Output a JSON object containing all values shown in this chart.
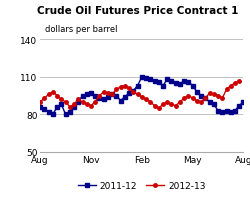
{
  "title": "Crude Oil Futures Price Contract 1",
  "subtitle": "dollars per barrel",
  "ylim": [
    50,
    145
  ],
  "yticks": [
    50,
    80,
    110,
    140
  ],
  "background_color": "#ffffff",
  "grid_color": "#aaaaaa",
  "series": [
    {
      "label": "2011-12",
      "color": "#00008B",
      "marker": "s",
      "markersize": 2.5,
      "linewidth": 1.0,
      "values": [
        86,
        84,
        82,
        80,
        86,
        88,
        80,
        82,
        86,
        90,
        95,
        96,
        97,
        95,
        93,
        92,
        94,
        96,
        95,
        91,
        94,
        97,
        99,
        103,
        110,
        109,
        108,
        107,
        106,
        103,
        108,
        107,
        105,
        104,
        107,
        106,
        103,
        98,
        95,
        93,
        90,
        88,
        83,
        82,
        83,
        82,
        83,
        87,
        90
      ]
    },
    {
      "label": "2012-13",
      "color": "#CC0000",
      "marker": "o",
      "markersize": 2.5,
      "linewidth": 1.0,
      "values": [
        90,
        93,
        96,
        98,
        95,
        92,
        90,
        86,
        88,
        92,
        90,
        88,
        87,
        90,
        95,
        98,
        97,
        96,
        100,
        102,
        103,
        101,
        98,
        96,
        94,
        92,
        90,
        87,
        85,
        88,
        90,
        88,
        87,
        90,
        93,
        95,
        93,
        91,
        90,
        93,
        97,
        96,
        95,
        93,
        100,
        103,
        105,
        107,
        null
      ]
    }
  ],
  "xtick_labels": [
    "Aug",
    "Nov",
    "Feb",
    "May",
    "Aug"
  ],
  "title_fontsize": 7.5,
  "subtitle_fontsize": 6,
  "tick_fontsize": 6.5,
  "legend_fontsize": 6.5
}
